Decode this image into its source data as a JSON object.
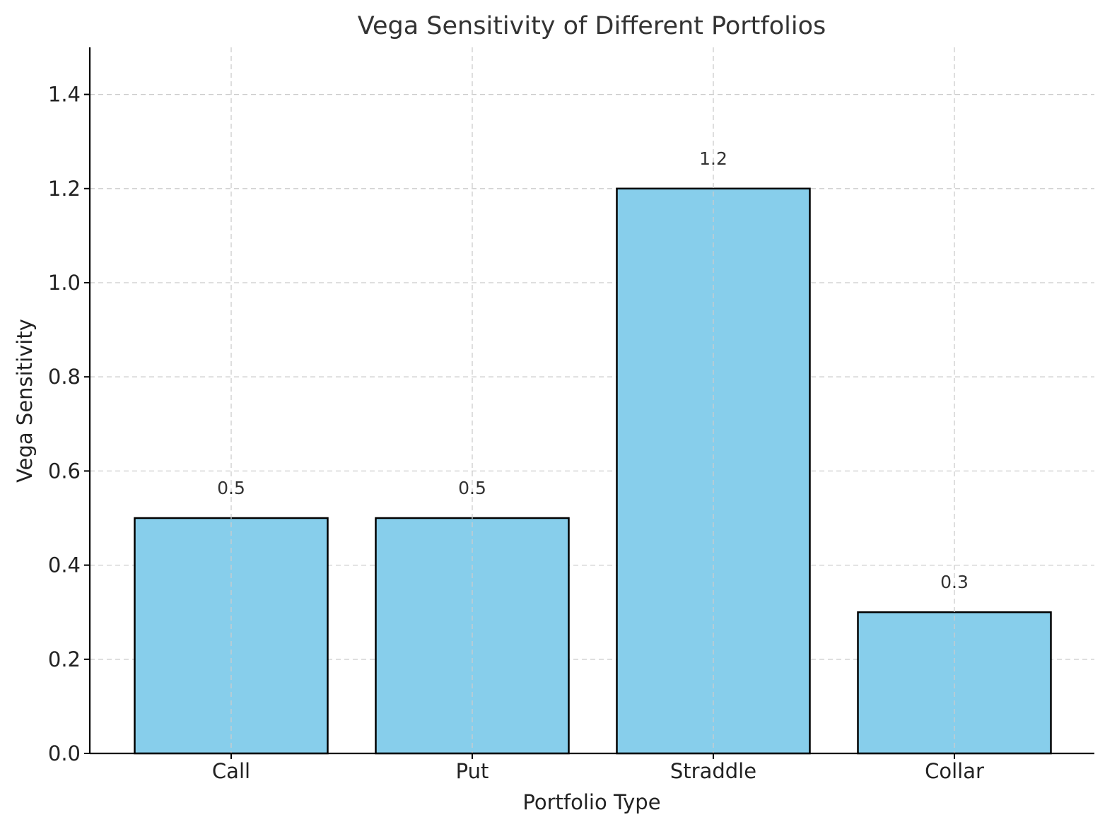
{
  "chart_data": {
    "type": "bar",
    "title": "Vega Sensitivity of Different Portfolios",
    "xlabel": "Portfolio Type",
    "ylabel": "Vega Sensitivity",
    "categories": [
      "Call",
      "Put",
      "Straddle",
      "Collar"
    ],
    "values": [
      0.5,
      0.5,
      1.2,
      0.3
    ],
    "data_labels": [
      "0.5",
      "0.5",
      "1.2",
      "0.3"
    ],
    "ylim": [
      0,
      1.5
    ],
    "yticks": [
      0.0,
      0.2,
      0.4,
      0.6,
      0.8,
      1.0,
      1.2,
      1.4
    ],
    "ytick_labels": [
      "0.0",
      "0.2",
      "0.4",
      "0.6",
      "0.8",
      "1.0",
      "1.2",
      "1.4"
    ],
    "grid": true,
    "bar_color": "#87CEEB",
    "edge_color": "#000000"
  }
}
